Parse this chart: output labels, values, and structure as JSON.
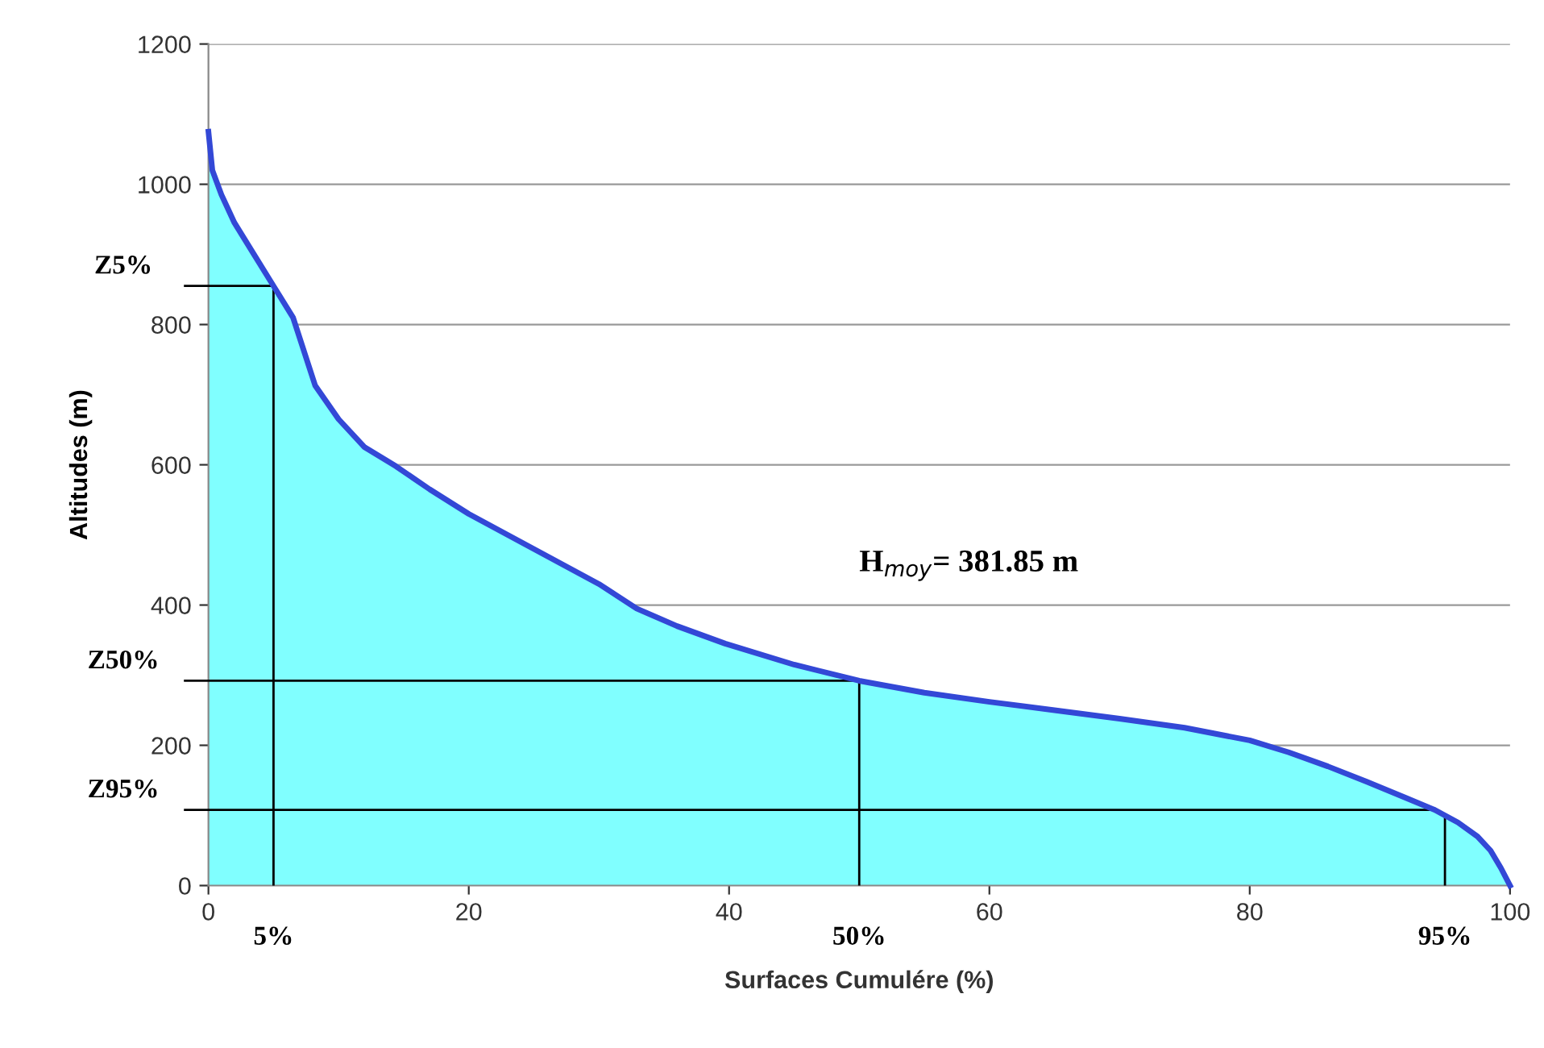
{
  "chart_data": {
    "type": "area",
    "xlabel": "Surfaces Cumulére (%)",
    "ylabel": "Altitudes (m)",
    "x": [
      0,
      0.3,
      1,
      2,
      3.5,
      5,
      6.5,
      8.2,
      10,
      12,
      14.4,
      17,
      20,
      25,
      30,
      32.9,
      36,
      39.7,
      45,
      50,
      55,
      60,
      65,
      70,
      75,
      80,
      83,
      86,
      89,
      92,
      94.2,
      96,
      97.5,
      98.5,
      99.3,
      100
    ],
    "series": [
      {
        "color": "#80ffff",
        "values": [
          1075,
          1020,
          985,
          945,
          900,
          855,
          810,
          713,
          665,
          625,
          598,
          565,
          530,
          480,
          430,
          395,
          370,
          345,
          315,
          292,
          275,
          262,
          250,
          238,
          225,
          207,
          190,
          170,
          148,
          125,
          108,
          90,
          70,
          50,
          25,
          0
        ]
      }
    ],
    "xlim": [
      0,
      100
    ],
    "xticks": [
      0,
      20,
      40,
      60,
      80,
      100
    ],
    "ylim": [
      0,
      1200
    ],
    "yticks": [
      0,
      200,
      400,
      600,
      800,
      1000,
      1200
    ],
    "grid": "y",
    "ref_lines": [
      {
        "axis": "y",
        "value": 855,
        "label": "Z5%"
      },
      {
        "axis": "y",
        "value": 292,
        "label": "Z50%"
      },
      {
        "axis": "y",
        "value": 108,
        "label": "Z95%"
      },
      {
        "axis": "x",
        "value": 5,
        "label": "5%"
      },
      {
        "axis": "x",
        "value": 50,
        "label": "50%"
      },
      {
        "axis": "x",
        "value": 95,
        "label": "95%"
      }
    ],
    "annotations": [
      "H$_{moy}$= 381.85 m"
    ]
  }
}
